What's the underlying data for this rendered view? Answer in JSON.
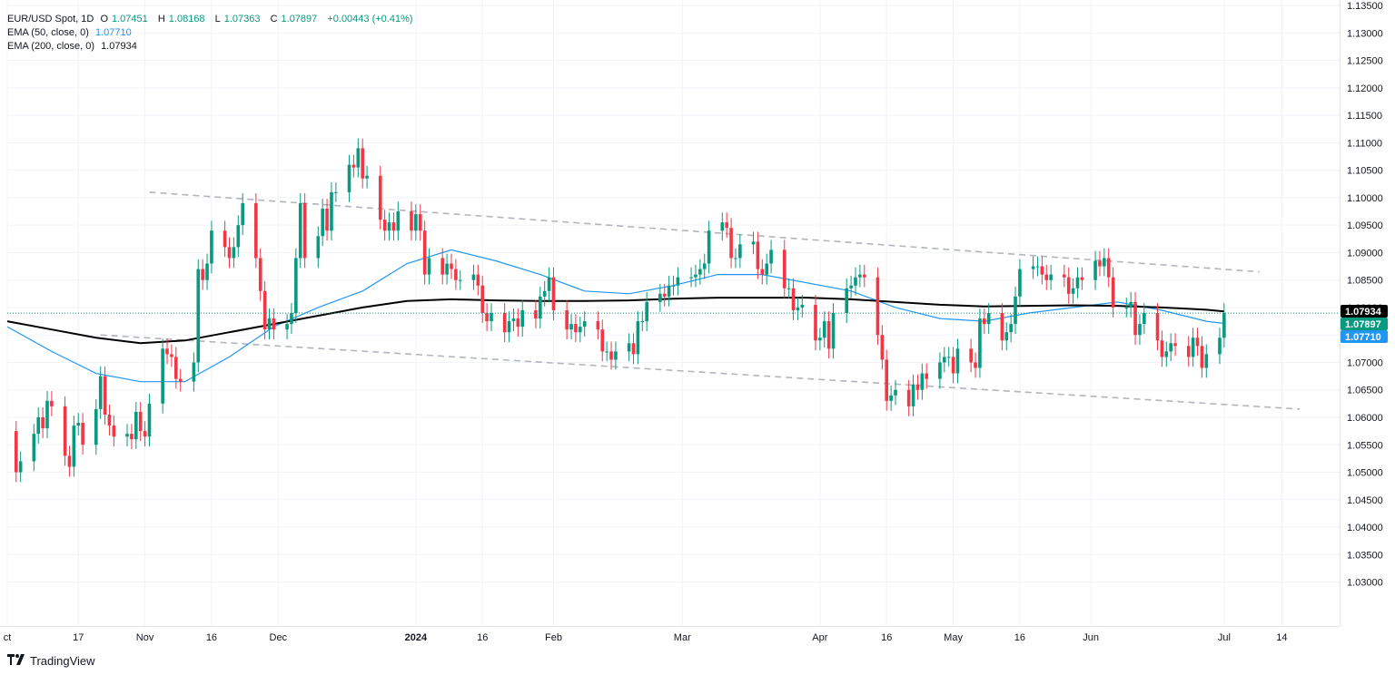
{
  "header": {
    "symbol": "EUR/USD Spot, 1D",
    "open_label": "O",
    "open": "1.07451",
    "high_label": "H",
    "high": "1.08168",
    "low_label": "L",
    "low": "1.07363",
    "close_label": "C",
    "close": "1.07897",
    "change": "+0.00443 (+0.41%)",
    "ema50_label": "EMA (50, close, 0)",
    "ema50_value": "1.07710",
    "ema200_label": "EMA (200, close, 0)",
    "ema200_value": "1.07934"
  },
  "brand": {
    "name": "TradingView"
  },
  "colors": {
    "up": "#089981",
    "down": "#f23645",
    "ema50": "#2196f3",
    "ema200": "#000000",
    "channel": "#b2b5be",
    "price_line": "#089981"
  },
  "chart_data": {
    "type": "candlestick",
    "title": "EUR/USD Spot, 1D",
    "ylim": [
      1.022,
      1.136
    ],
    "y_ticks": [
      "1.13500",
      "1.13000",
      "1.12500",
      "1.12000",
      "1.11500",
      "1.11000",
      "1.10500",
      "1.10000",
      "1.09500",
      "1.09000",
      "1.08500",
      "1.08000",
      "1.07500",
      "1.07000",
      "1.06500",
      "1.06000",
      "1.05500",
      "1.05000",
      "1.04500",
      "1.04000",
      "1.03500",
      "1.03000"
    ],
    "x_ticks": [
      {
        "label": "ct",
        "day": 0
      },
      {
        "label": "17",
        "day": 16
      },
      {
        "label": "Nov",
        "day": 31
      },
      {
        "label": "16",
        "day": 46
      },
      {
        "label": "Dec",
        "day": 61
      },
      {
        "label": "2024",
        "day": 92
      },
      {
        "label": "16",
        "day": 107
      },
      {
        "label": "Feb",
        "day": 123
      },
      {
        "label": "Mar",
        "day": 152
      },
      {
        "label": "Apr",
        "day": 183
      },
      {
        "label": "16",
        "day": 198
      },
      {
        "label": "May",
        "day": 213
      },
      {
        "label": "16",
        "day": 228
      },
      {
        "label": "Jun",
        "day": 244
      },
      {
        "label": "Jul",
        "day": 274
      },
      {
        "label": "14",
        "day": 287
      }
    ],
    "x_range_days": [
      0,
      300
    ],
    "candles": [
      [
        2,
        1.0575,
        1.05
      ],
      [
        3,
        1.05,
        1.052
      ],
      [
        6,
        1.052,
        1.057
      ],
      [
        7,
        1.057,
        1.06
      ],
      [
        8,
        1.06,
        1.058
      ],
      [
        9,
        1.058,
        1.063
      ],
      [
        10,
        1.063,
        1.062
      ],
      [
        13,
        1.062,
        1.053
      ],
      [
        14,
        1.053,
        1.051
      ],
      [
        15,
        1.051,
        1.0585
      ],
      [
        16,
        1.0585,
        1.059
      ],
      [
        17,
        1.059,
        1.055
      ],
      [
        20,
        1.055,
        1.0615
      ],
      [
        21,
        1.0615,
        1.0675
      ],
      [
        22,
        1.0675,
        1.0605
      ],
      [
        23,
        1.0605,
        1.0585
      ],
      [
        24,
        1.0585,
        1.0565
      ],
      [
        27,
        1.0565,
        1.057
      ],
      [
        28,
        1.057,
        1.056
      ],
      [
        29,
        1.056,
        1.061
      ],
      [
        30,
        1.061,
        1.0575
      ],
      [
        31,
        1.0575,
        1.0565
      ],
      [
        32,
        1.0565,
        1.0625
      ],
      [
        35,
        1.0625,
        1.0725
      ],
      [
        36,
        1.0725,
        1.0715
      ],
      [
        37,
        1.0715,
        1.071
      ],
      [
        38,
        1.071,
        1.067
      ],
      [
        39,
        1.067,
        1.0665
      ],
      [
        42,
        1.0665,
        1.07
      ],
      [
        43,
        1.07,
        1.087
      ],
      [
        44,
        1.087,
        1.085
      ],
      [
        45,
        1.085,
        1.088
      ],
      [
        46,
        1.088,
        1.094
      ],
      [
        49,
        1.094,
        1.091
      ],
      [
        50,
        1.091,
        1.089
      ],
      [
        51,
        1.089,
        1.091
      ],
      [
        52,
        1.091,
        1.095
      ],
      [
        53,
        1.095,
        1.099
      ],
      [
        56,
        1.099,
        1.089
      ],
      [
        57,
        1.089,
        1.083
      ],
      [
        58,
        1.083,
        1.076
      ],
      [
        59,
        1.076,
        1.078
      ],
      [
        60,
        1.078,
        1.076
      ],
      [
        63,
        1.076,
        1.077
      ],
      [
        64,
        1.077,
        1.079
      ],
      [
        65,
        1.079,
        1.089
      ],
      [
        66,
        1.089,
        1.099
      ],
      [
        67,
        1.099,
        1.089
      ],
      [
        70,
        1.089,
        1.093
      ],
      [
        71,
        1.093,
        1.098
      ],
      [
        72,
        1.098,
        1.094
      ],
      [
        73,
        1.094,
        1.101
      ],
      [
        74,
        1.101,
        1.101
      ],
      [
        77,
        1.101,
        1.106
      ],
      [
        78,
        1.106,
        1.1055
      ],
      [
        79,
        1.1055,
        1.109
      ],
      [
        80,
        1.109,
        1.1035
      ],
      [
        81,
        1.1035,
        1.104
      ],
      [
        84,
        1.104,
        1.096
      ],
      [
        85,
        1.096,
        1.094
      ],
      [
        86,
        1.094,
        1.0955
      ],
      [
        87,
        1.0955,
        1.094
      ],
      [
        88,
        1.094,
        1.0975
      ],
      [
        91,
        1.0975,
        1.094
      ],
      [
        92,
        1.094,
        1.097
      ],
      [
        93,
        1.097,
        1.094
      ],
      [
        94,
        1.094,
        1.086
      ],
      [
        95,
        1.086,
        1.089
      ],
      [
        98,
        1.089,
        1.086
      ],
      [
        99,
        1.086,
        1.088
      ],
      [
        100,
        1.088,
        1.087
      ],
      [
        101,
        1.087,
        1.085
      ],
      [
        102,
        1.085,
        1.085
      ],
      [
        105,
        1.085,
        1.086
      ],
      [
        106,
        1.086,
        1.084
      ],
      [
        107,
        1.084,
        1.079
      ],
      [
        108,
        1.079,
        1.0775
      ],
      [
        109,
        1.0775,
        1.079
      ],
      [
        112,
        1.079,
        1.0755
      ],
      [
        113,
        1.0755,
        1.0775
      ],
      [
        114,
        1.0775,
        1.078
      ],
      [
        115,
        1.078,
        1.0765
      ],
      [
        116,
        1.0765,
        1.0795
      ],
      [
        119,
        1.0795,
        1.078
      ],
      [
        120,
        1.078,
        1.082
      ],
      [
        121,
        1.082,
        1.083
      ],
      [
        122,
        1.083,
        1.0855
      ],
      [
        123,
        1.0855,
        1.0795
      ],
      [
        126,
        1.0795,
        1.076
      ],
      [
        127,
        1.076,
        1.077
      ],
      [
        128,
        1.077,
        1.0755
      ],
      [
        129,
        1.0755,
        1.0765
      ],
      [
        130,
        1.0765,
        1.0775
      ],
      [
        133,
        1.0775,
        1.076
      ],
      [
        134,
        1.076,
        1.072
      ],
      [
        135,
        1.072,
        1.072
      ],
      [
        136,
        1.072,
        1.0705
      ],
      [
        137,
        1.0705,
        1.072
      ],
      [
        140,
        1.072,
        1.0735
      ],
      [
        141,
        1.0735,
        1.0715
      ],
      [
        142,
        1.0715,
        1.0775
      ],
      [
        143,
        1.0775,
        1.0775
      ],
      [
        144,
        1.0775,
        1.081
      ],
      [
        147,
        1.081,
        1.0825
      ],
      [
        148,
        1.0825,
        1.082
      ],
      [
        149,
        1.082,
        1.084
      ],
      [
        150,
        1.084,
        1.084
      ],
      [
        151,
        1.084,
        1.0855
      ],
      [
        154,
        1.0855,
        1.0855
      ],
      [
        155,
        1.0855,
        1.086
      ],
      [
        156,
        1.086,
        1.087
      ],
      [
        157,
        1.087,
        1.088
      ],
      [
        158,
        1.088,
        1.094
      ],
      [
        161,
        1.094,
        1.0955
      ],
      [
        162,
        1.0955,
        1.0945
      ],
      [
        163,
        1.0945,
        1.089
      ],
      [
        164,
        1.089,
        1.089
      ],
      [
        165,
        1.089,
        1.0915
      ],
      [
        168,
        1.0915,
        1.092
      ],
      [
        169,
        1.092,
        1.087
      ],
      [
        170,
        1.087,
        1.086
      ],
      [
        171,
        1.086,
        1.088
      ],
      [
        172,
        1.088,
        1.0905
      ],
      [
        175,
        1.0905,
        1.0835
      ],
      [
        176,
        1.0835,
        1.0835
      ],
      [
        177,
        1.0835,
        1.0795
      ],
      [
        178,
        1.0795,
        1.08
      ],
      [
        179,
        1.08,
        1.0805
      ],
      [
        182,
        1.0805,
        1.074
      ],
      [
        183,
        1.074,
        1.0745
      ],
      [
        184,
        1.0745,
        1.0775
      ],
      [
        185,
        1.0775,
        1.0725
      ],
      [
        186,
        1.0725,
        1.079
      ],
      [
        189,
        1.079,
        1.0835
      ],
      [
        190,
        1.0835,
        1.084
      ],
      [
        191,
        1.084,
        1.0855
      ],
      [
        192,
        1.0855,
        1.086
      ],
      [
        193,
        1.086,
        1.0855
      ],
      [
        196,
        1.0855,
        1.075
      ],
      [
        197,
        1.075,
        1.0705
      ],
      [
        198,
        1.0705,
        1.063
      ],
      [
        199,
        1.063,
        1.064
      ],
      [
        200,
        1.064,
        1.065
      ],
      [
        203,
        1.065,
        1.062
      ],
      [
        204,
        1.062,
        1.066
      ],
      [
        205,
        1.066,
        1.065
      ],
      [
        206,
        1.065,
        1.068
      ],
      [
        207,
        1.068,
        1.067
      ],
      [
        210,
        1.067,
        1.07
      ],
      [
        211,
        1.07,
        1.071
      ],
      [
        212,
        1.071,
        1.071
      ],
      [
        213,
        1.071,
        1.068
      ],
      [
        214,
        1.068,
        1.0725
      ],
      [
        217,
        1.0725,
        1.07
      ],
      [
        218,
        1.07,
        1.069
      ],
      [
        219,
        1.069,
        1.078
      ],
      [
        220,
        1.078,
        1.077
      ],
      [
        221,
        1.077,
        1.079
      ],
      [
        224,
        1.079,
        1.074
      ],
      [
        225,
        1.074,
        1.0755
      ],
      [
        226,
        1.0755,
        1.077
      ],
      [
        227,
        1.077,
        1.082
      ],
      [
        228,
        1.082,
        1.087
      ],
      [
        231,
        1.087,
        1.0875
      ],
      [
        232,
        1.0875,
        1.0875
      ],
      [
        233,
        1.0875,
        1.086
      ],
      [
        234,
        1.086,
        1.085
      ],
      [
        235,
        1.085,
        1.086
      ],
      [
        238,
        1.086,
        1.0855
      ],
      [
        239,
        1.0855,
        1.0825
      ],
      [
        240,
        1.0825,
        1.0835
      ],
      [
        241,
        1.0835,
        1.0855
      ],
      [
        242,
        1.0855,
        1.085
      ],
      [
        245,
        1.085,
        1.0885
      ],
      [
        246,
        1.0885,
        1.0875
      ],
      [
        247,
        1.0875,
        1.089
      ],
      [
        248,
        1.089,
        1.0855
      ],
      [
        249,
        1.0855,
        1.08
      ],
      [
        252,
        1.08,
        1.08
      ],
      [
        253,
        1.08,
        1.081
      ],
      [
        254,
        1.081,
        1.075
      ],
      [
        255,
        1.075,
        1.077
      ],
      [
        256,
        1.077,
        1.079
      ],
      [
        259,
        1.079,
        1.074
      ],
      [
        260,
        1.074,
        1.071
      ],
      [
        261,
        1.071,
        1.072
      ],
      [
        262,
        1.072,
        1.0735
      ],
      [
        263,
        1.0735,
        1.073
      ],
      [
        266,
        1.073,
        1.071
      ],
      [
        267,
        1.071,
        1.0745
      ],
      [
        268,
        1.0745,
        1.073
      ],
      [
        269,
        1.073,
        1.069
      ],
      [
        270,
        1.069,
        1.0715
      ],
      [
        273,
        1.0715,
        1.0745
      ],
      [
        274,
        1.0745,
        1.079
      ]
    ],
    "ema50": [
      [
        0,
        1.0765
      ],
      [
        10,
        1.072
      ],
      [
        20,
        1.068
      ],
      [
        30,
        1.0665
      ],
      [
        40,
        1.0665
      ],
      [
        50,
        1.071
      ],
      [
        60,
        1.0765
      ],
      [
        70,
        1.08
      ],
      [
        80,
        1.083
      ],
      [
        90,
        1.088
      ],
      [
        100,
        1.0905
      ],
      [
        110,
        1.0885
      ],
      [
        120,
        1.086
      ],
      [
        130,
        1.083
      ],
      [
        140,
        1.0825
      ],
      [
        150,
        1.084
      ],
      [
        160,
        1.086
      ],
      [
        170,
        1.086
      ],
      [
        180,
        1.0845
      ],
      [
        190,
        1.083
      ],
      [
        200,
        1.08
      ],
      [
        210,
        1.078
      ],
      [
        220,
        1.0775
      ],
      [
        230,
        1.079
      ],
      [
        240,
        1.08
      ],
      [
        250,
        1.081
      ],
      [
        260,
        1.0795
      ],
      [
        270,
        1.0775
      ],
      [
        274,
        1.0771
      ]
    ],
    "ema200": [
      [
        0,
        1.0775
      ],
      [
        10,
        1.076
      ],
      [
        20,
        1.0745
      ],
      [
        30,
        1.0735
      ],
      [
        40,
        1.074
      ],
      [
        50,
        1.0755
      ],
      [
        60,
        1.077
      ],
      [
        70,
        1.0785
      ],
      [
        80,
        1.08
      ],
      [
        90,
        1.0812
      ],
      [
        100,
        1.0815
      ],
      [
        110,
        1.0813
      ],
      [
        120,
        1.0812
      ],
      [
        130,
        1.0812
      ],
      [
        140,
        1.0813
      ],
      [
        150,
        1.0816
      ],
      [
        160,
        1.0818
      ],
      [
        170,
        1.0818
      ],
      [
        180,
        1.0818
      ],
      [
        190,
        1.0815
      ],
      [
        200,
        1.081
      ],
      [
        210,
        1.0805
      ],
      [
        220,
        1.0802
      ],
      [
        230,
        1.0803
      ],
      [
        240,
        1.0804
      ],
      [
        250,
        1.0803
      ],
      [
        260,
        1.08
      ],
      [
        270,
        1.0796
      ],
      [
        274,
        1.0793
      ]
    ],
    "channel_lines": [
      {
        "from": [
          32,
          1.101
        ],
        "to": [
          282,
          1.0865
        ]
      },
      {
        "from": [
          21,
          1.075
        ],
        "to": [
          291,
          1.0615
        ]
      }
    ],
    "last_price": 1.07897,
    "price_labels": [
      {
        "value": 1.07934,
        "text": "1.07934",
        "color": "#000000"
      },
      {
        "value": 1.07897,
        "text": "1.07897",
        "color": "#089981"
      },
      {
        "value": 1.0771,
        "text": "1.07710",
        "color": "#2196f3"
      }
    ]
  }
}
